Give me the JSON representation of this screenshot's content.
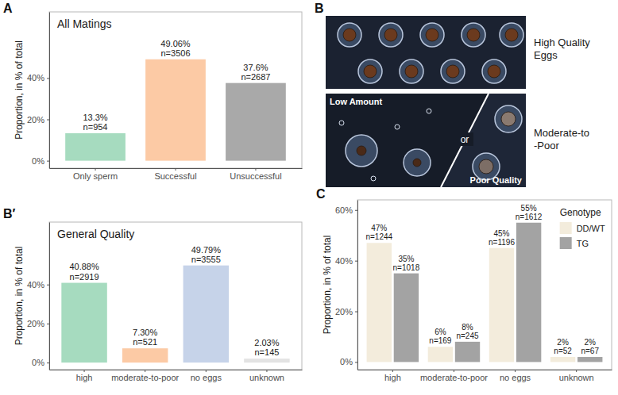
{
  "chart_data": [
    {
      "panel": "A",
      "type": "bar",
      "title": "All Matings",
      "y_label": "Proportion, in % of total",
      "categories": [
        "Only sperm",
        "Successful",
        "Unsuccessful"
      ],
      "values": [
        13.3,
        49.06,
        37.6
      ],
      "value_labels": [
        "13.3%",
        "49.06%",
        "37.6%"
      ],
      "count_labels": [
        "n=954",
        "n=3506",
        "n=2687"
      ],
      "colors": [
        "#a6dbbf",
        "#fccaa5",
        "#a9a9a9"
      ],
      "ylim": [
        -3.6,
        72
      ],
      "yticks": [
        {
          "value": 0,
          "label": "0%"
        },
        {
          "value": 20,
          "label": "20%"
        },
        {
          "value": 40,
          "label": "40%"
        }
      ],
      "grid": false,
      "data_labels": true
    },
    {
      "panel": "B′",
      "type": "bar",
      "title": "General Quality",
      "y_label": "Proportion, in % of total",
      "categories": [
        "high",
        "moderate-to-poor",
        "no eggs",
        "unknown"
      ],
      "values": [
        40.88,
        7.3,
        49.79,
        2.03
      ],
      "value_labels": [
        "40.88%",
        "7.30%",
        "49.79%",
        "2.03%"
      ],
      "count_labels": [
        "n=2919",
        "n=521",
        "n=3555",
        "n=145"
      ],
      "colors": [
        "#a6dbbf",
        "#fccaa5",
        "#c6d3e9",
        "#e3e3e3"
      ],
      "ylim": [
        -3.6,
        72
      ],
      "yticks": [
        {
          "value": 0,
          "label": "0%"
        },
        {
          "value": 20,
          "label": "20%"
        },
        {
          "value": 40,
          "label": "40%"
        }
      ],
      "grid": false,
      "data_labels": true
    },
    {
      "panel": "C",
      "type": "bar",
      "y_label": "Proportion, in % of total",
      "categories": [
        "high",
        "moderate-to-poor",
        "no eggs",
        "unknown"
      ],
      "series": [
        {
          "name": "DD/WT",
          "color": "#f3ecdc",
          "values": [
            47,
            6,
            45,
            2
          ],
          "value_labels": [
            "47%",
            "6%",
            "45%",
            "2%"
          ],
          "count_labels": [
            "n=1244",
            "n=169",
            "n=1196",
            "n=52"
          ]
        },
        {
          "name": "TG",
          "color": "#a3a3a3",
          "values": [
            35,
            8,
            55,
            2
          ],
          "value_labels": [
            "35%",
            "8%",
            "55%",
            "2%"
          ],
          "count_labels": [
            "n=1018",
            "n=245",
            "n=1612",
            "n=67"
          ]
        }
      ],
      "legend_title": "Genotype",
      "legend": "top-right",
      "ylim": [
        -3,
        64
      ],
      "yticks": [
        {
          "value": 0,
          "label": "0%"
        },
        {
          "value": 20,
          "label": "20%"
        },
        {
          "value": 40,
          "label": "40%"
        },
        {
          "value": 60,
          "label": "60%"
        }
      ],
      "grid": false,
      "data_labels": true
    }
  ],
  "image_panel": {
    "panel": "B",
    "labels": [
      "High Quality Eggs",
      "Moderate-to-Poor"
    ],
    "inset_labels": [
      "Low Amount",
      "or",
      "Poor Quality"
    ]
  }
}
